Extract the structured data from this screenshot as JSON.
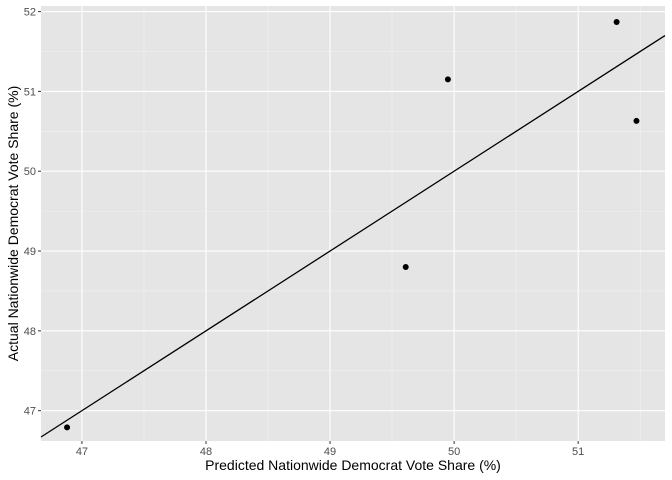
{
  "chart_data": {
    "type": "scatter",
    "xlabel": "Predicted Nationwide Democrat Vote Share (%)",
    "ylabel": "Actual Nationwide Democrat Vote Share (%)",
    "xlim": [
      46.67,
      51.7
    ],
    "ylim": [
      46.62,
      52.07
    ],
    "x_ticks": [
      47,
      48,
      49,
      50,
      51
    ],
    "y_ticks": [
      47,
      48,
      49,
      50,
      51,
      52
    ],
    "x_tick_labels": [
      "47",
      "48",
      "49",
      "50",
      "51"
    ],
    "y_tick_labels": [
      "47",
      "48",
      "49",
      "50",
      "51",
      "52"
    ],
    "points": [
      {
        "x": 46.88,
        "y": 46.79
      },
      {
        "x": 49.61,
        "y": 48.8
      },
      {
        "x": 49.95,
        "y": 51.15
      },
      {
        "x": 51.31,
        "y": 51.87
      },
      {
        "x": 51.47,
        "y": 50.63
      }
    ],
    "reference_line": {
      "type": "identity",
      "x": [
        46.67,
        51.7
      ],
      "y": [
        46.67,
        51.7
      ]
    },
    "grid": true,
    "legend": "none",
    "colors": {
      "panel_background": "#e5e5e5",
      "grid_major": "#ffffff",
      "grid_minor": "#f2f2f2",
      "point": "#000000",
      "line": "#000000"
    }
  }
}
